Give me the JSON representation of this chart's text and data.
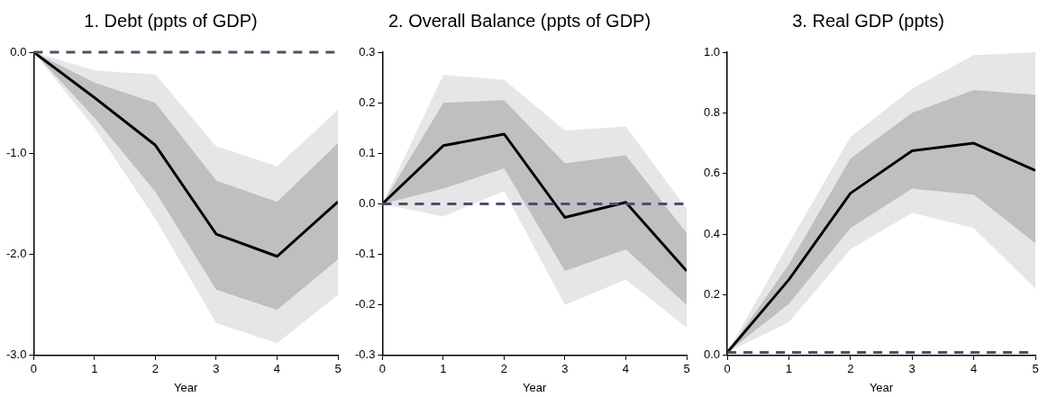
{
  "chart_data": [
    {
      "type": "line",
      "title": "1. Debt (ppts of GDP)",
      "xlabel": "Year",
      "x": [
        0,
        1,
        2,
        3,
        4,
        5
      ],
      "xlim": [
        0,
        5
      ],
      "xticks": [
        0,
        1,
        2,
        3,
        4,
        5
      ],
      "ylim": [
        -3,
        0
      ],
      "yticks": [
        {
          "value": -3,
          "label": "-3.0"
        },
        {
          "value": -2,
          "label": "-2.0"
        },
        {
          "value": -1,
          "label": "-1.0"
        },
        {
          "value": 0,
          "label": "0.0"
        }
      ],
      "grid": false,
      "legend": false,
      "marker": "none",
      "series": [
        {
          "color": "#e6e6e6",
          "values": [
            0,
            -0.45,
            -0.92,
            -1.8,
            -2.02,
            -1.48
          ],
          "lower": [
            0,
            -0.75,
            -1.65,
            -2.68,
            -2.88,
            -2.4
          ],
          "upper": [
            0,
            -0.18,
            -0.22,
            -0.93,
            -1.13,
            -0.57
          ]
        },
        {
          "color": "#000000",
          "values": [
            0,
            -0.45,
            -0.92,
            -1.8,
            -2.02,
            -1.48
          ],
          "lower": [
            0,
            -0.65,
            -1.38,
            -2.35,
            -2.55,
            -2.05
          ],
          "upper": [
            0,
            -0.3,
            -0.5,
            -1.27,
            -1.48,
            -0.9
          ]
        }
      ],
      "ref_lines": [
        {
          "axis": "y",
          "value": 0,
          "color": "#44546a",
          "line_style": "dashed"
        }
      ]
    },
    {
      "type": "line",
      "title": "2. Overall Balance (ppts of GDP)",
      "xlabel": "Year",
      "x": [
        0,
        1,
        2,
        3,
        4,
        5
      ],
      "xlim": [
        0,
        5
      ],
      "xticks": [
        0,
        1,
        2,
        3,
        4,
        5
      ],
      "ylim": [
        -0.3,
        0.3
      ],
      "yticks": [
        -0.3,
        -0.2,
        -0.1,
        {
          "value": 0,
          "label": "0.0"
        },
        0.1,
        0.2,
        0.3
      ],
      "grid": false,
      "legend": false,
      "marker": "none",
      "series": [
        {
          "color": "#e6e6e6",
          "values": [
            0,
            0.115,
            0.138,
            -0.027,
            0.003,
            -0.133
          ],
          "lower": [
            0,
            -0.025,
            0.025,
            -0.2,
            -0.15,
            -0.245
          ],
          "upper": [
            0,
            0.255,
            0.245,
            0.145,
            0.153,
            -0.01
          ]
        },
        {
          "color": "#000000",
          "values": [
            0,
            0.115,
            0.138,
            -0.027,
            0.003,
            -0.133
          ],
          "lower": [
            0,
            0.03,
            0.07,
            -0.133,
            -0.09,
            -0.2
          ],
          "upper": [
            0,
            0.2,
            0.205,
            0.08,
            0.096,
            -0.058
          ]
        }
      ],
      "ref_lines": [
        {
          "axis": "y",
          "value": 0,
          "color": "#44546a",
          "line_style": "dashed"
        }
      ]
    },
    {
      "type": "line",
      "title": "3. Real GDP (ppts)",
      "xlabel": "Year",
      "x": [
        0,
        1,
        2,
        3,
        4,
        5
      ],
      "xlim": [
        0,
        5
      ],
      "xticks": [
        0,
        1,
        2,
        3,
        4,
        5
      ],
      "ylim": [
        0,
        1
      ],
      "yticks": [
        {
          "value": 0,
          "label": "0.0"
        },
        0.2,
        0.4,
        0.6,
        0.8,
        {
          "value": 1,
          "label": "1.0"
        }
      ],
      "grid": false,
      "legend": false,
      "marker": "none",
      "series": [
        {
          "color": "#e6e6e6",
          "values": [
            0.01,
            0.25,
            0.535,
            0.675,
            0.7,
            0.61
          ],
          "lower": [
            0.01,
            0.11,
            0.35,
            0.47,
            0.42,
            0.22
          ],
          "upper": [
            0.01,
            0.37,
            0.72,
            0.88,
            0.99,
            1.0
          ]
        },
        {
          "color": "#000000",
          "values": [
            0.01,
            0.25,
            0.535,
            0.675,
            0.7,
            0.61
          ],
          "lower": [
            0.01,
            0.17,
            0.42,
            0.55,
            0.53,
            0.37
          ],
          "upper": [
            0.01,
            0.3,
            0.65,
            0.8,
            0.875,
            0.86
          ]
        }
      ],
      "ref_lines": [
        {
          "axis": "y",
          "value": 0.01,
          "color": "#44546a",
          "line_style": "dashed"
        }
      ]
    }
  ]
}
